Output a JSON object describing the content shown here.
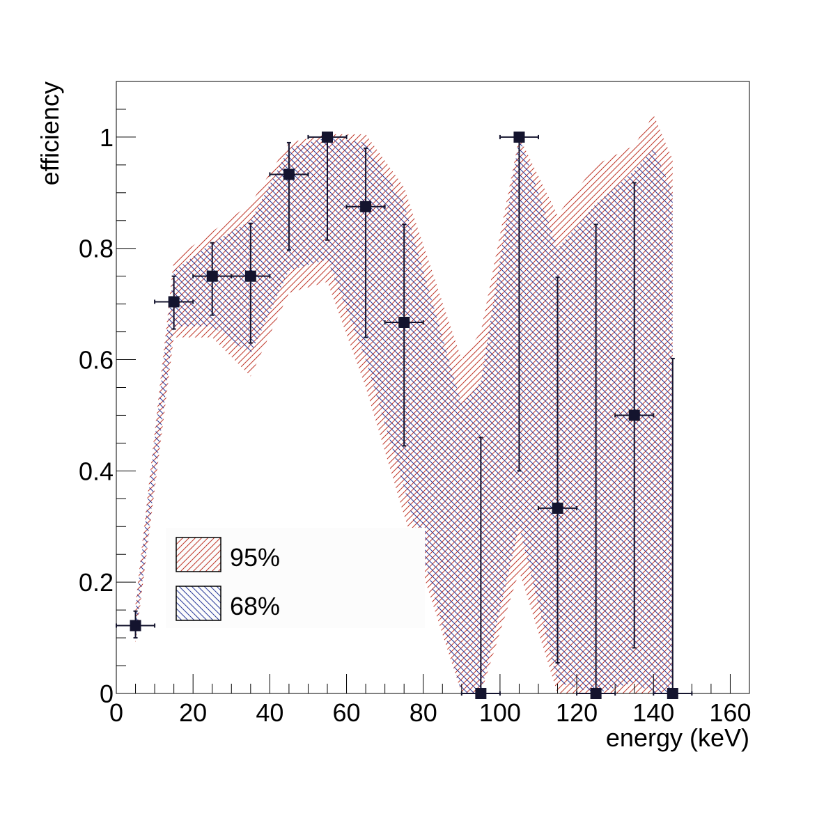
{
  "chart_data": {
    "type": "scatter",
    "title": "",
    "xlabel": "energy (keV)",
    "ylabel": "efficiency",
    "xlim": [
      0,
      165
    ],
    "ylim": [
      0,
      1.1
    ],
    "x_tick_labels": [
      "0",
      "20",
      "40",
      "60",
      "80",
      "100",
      "120",
      "140",
      "160"
    ],
    "y_tick_labels": [
      "0",
      "0.2",
      "0.4",
      "0.6",
      "0.8",
      "1"
    ],
    "grid": false,
    "points": [
      {
        "x": 5,
        "xerr": 5,
        "y": 0.122,
        "ylow": 0.1,
        "yhigh": 0.148
      },
      {
        "x": 15,
        "xerr": 5,
        "y": 0.704,
        "ylow": 0.655,
        "yhigh": 0.75
      },
      {
        "x": 25,
        "xerr": 5,
        "y": 0.75,
        "ylow": 0.68,
        "yhigh": 0.81
      },
      {
        "x": 35,
        "xerr": 5,
        "y": 0.75,
        "ylow": 0.63,
        "yhigh": 0.845
      },
      {
        "x": 45,
        "xerr": 5,
        "y": 0.933,
        "ylow": 0.797,
        "yhigh": 0.99
      },
      {
        "x": 55,
        "xerr": 5,
        "y": 1.0,
        "ylow": 0.815,
        "yhigh": 1.0
      },
      {
        "x": 65,
        "xerr": 5,
        "y": 0.875,
        "ylow": 0.64,
        "yhigh": 0.98
      },
      {
        "x": 75,
        "xerr": 5,
        "y": 0.667,
        "ylow": 0.445,
        "yhigh": 0.843
      },
      {
        "x": 95,
        "xerr": 5,
        "y": 0.0,
        "ylow": 0.0,
        "yhigh": 0.46
      },
      {
        "x": 105,
        "xerr": 5,
        "y": 1.0,
        "ylow": 0.4,
        "yhigh": 1.0
      },
      {
        "x": 115,
        "xerr": 5,
        "y": 0.333,
        "ylow": 0.055,
        "yhigh": 0.748
      },
      {
        "x": 125,
        "xerr": 5,
        "y": 0.0,
        "ylow": 0.0,
        "yhigh": 0.843
      },
      {
        "x": 135,
        "xerr": 5,
        "y": 0.5,
        "ylow": 0.082,
        "yhigh": 0.918
      },
      {
        "x": 145,
        "xerr": 5,
        "y": 0.0,
        "ylow": 0.0,
        "yhigh": 0.602
      }
    ],
    "bands": [
      {
        "name": "95%",
        "color": "#c0392b",
        "x": [
          5,
          15,
          25,
          35,
          45,
          55,
          65,
          75,
          90,
          95,
          105,
          115,
          125,
          135,
          140,
          145
        ],
        "low": [
          0.09,
          0.64,
          0.64,
          0.57,
          0.72,
          0.74,
          0.55,
          0.32,
          0.0,
          0.0,
          0.22,
          0.0,
          0.0,
          0.0,
          0.0,
          0.0
        ],
        "high": [
          0.16,
          0.78,
          0.83,
          0.88,
          0.99,
          1.005,
          1.005,
          0.91,
          0.6,
          0.65,
          1.0,
          0.86,
          0.95,
          0.985,
          1.04,
          0.96
        ]
      },
      {
        "name": "68%",
        "color": "#2a3a9a",
        "x": [
          5,
          15,
          25,
          35,
          45,
          55,
          65,
          75,
          90,
          95,
          105,
          115,
          125,
          135,
          140,
          145
        ],
        "low": [
          0.1,
          0.66,
          0.66,
          0.61,
          0.76,
          0.78,
          0.6,
          0.37,
          0.0,
          0.0,
          0.3,
          0.02,
          0.0,
          0.02,
          0.0,
          0.0
        ],
        "high": [
          0.15,
          0.76,
          0.81,
          0.85,
          0.98,
          1.0,
          0.99,
          0.88,
          0.52,
          0.56,
          1.0,
          0.8,
          0.88,
          0.94,
          0.98,
          0.9
        ]
      }
    ],
    "legend": {
      "placement": "bottom-left",
      "entries": [
        {
          "label": "95%",
          "color": "#c0392b"
        },
        {
          "label": "68%",
          "color": "#2a3a9a"
        }
      ]
    },
    "marker_color": "#14142e"
  }
}
